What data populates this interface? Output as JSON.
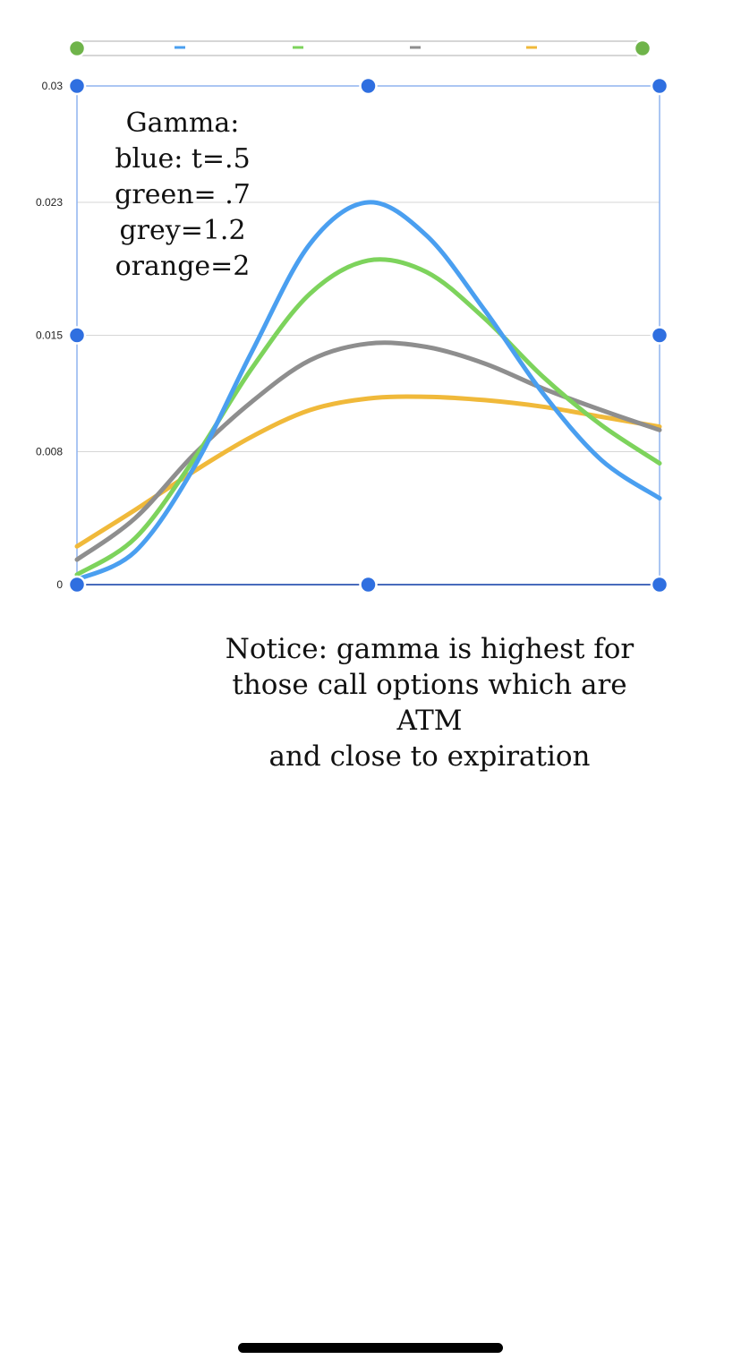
{
  "chart_data": {
    "type": "line",
    "yticks": [
      "0",
      "0.008",
      "0.015",
      "0.023",
      "0.03"
    ],
    "ylim": [
      0,
      0.03
    ],
    "xlim": [
      0,
      1
    ],
    "grid": true,
    "legend_placement": "top",
    "series": [
      {
        "color": "#4a9ff0",
        "x": [
          0.0,
          0.1,
          0.2,
          0.3,
          0.4,
          0.5,
          0.6,
          0.7,
          0.8,
          0.9,
          1.0
        ],
        "y": [
          0.0003,
          0.002,
          0.007,
          0.014,
          0.0205,
          0.023,
          0.021,
          0.0165,
          0.0115,
          0.0075,
          0.0052
        ]
      },
      {
        "color": "#7dd35c",
        "x": [
          0.0,
          0.1,
          0.2,
          0.3,
          0.4,
          0.5,
          0.6,
          0.7,
          0.8,
          0.9,
          1.0
        ],
        "y": [
          0.0006,
          0.0028,
          0.0075,
          0.013,
          0.0175,
          0.0195,
          0.0188,
          0.016,
          0.0125,
          0.0096,
          0.0073
        ]
      },
      {
        "color": "#8e8e8e",
        "x": [
          0.0,
          0.1,
          0.2,
          0.3,
          0.4,
          0.5,
          0.6,
          0.7,
          0.8,
          0.9,
          1.0
        ],
        "y": [
          0.0015,
          0.004,
          0.0078,
          0.011,
          0.0135,
          0.0145,
          0.0143,
          0.0133,
          0.0118,
          0.0105,
          0.0093
        ]
      },
      {
        "color": "#f0b93a",
        "x": [
          0.0,
          0.1,
          0.2,
          0.3,
          0.4,
          0.5,
          0.6,
          0.7,
          0.8,
          0.9,
          1.0
        ],
        "y": [
          0.0023,
          0.0045,
          0.0068,
          0.0089,
          0.0105,
          0.0112,
          0.0113,
          0.0111,
          0.0107,
          0.0101,
          0.0095
        ]
      }
    ]
  },
  "annotations": {
    "legend_note": {
      "line1": "Gamma:",
      "line2": "blue: t=.5",
      "line3": "green= .7",
      "line4": "grey=1.2",
      "line5": "orange=2"
    },
    "notice": {
      "line1": "Notice: gamma is highest for",
      "line2": "those call options which are ATM",
      "line3": "and close to expiration"
    }
  },
  "colors": {
    "selection_handle": "#2f6fe0",
    "legend_handle": "#6fb44a",
    "frame": "#8fb3ef",
    "axis": "#1f47a8",
    "gridline": "#d6d6d6"
  }
}
